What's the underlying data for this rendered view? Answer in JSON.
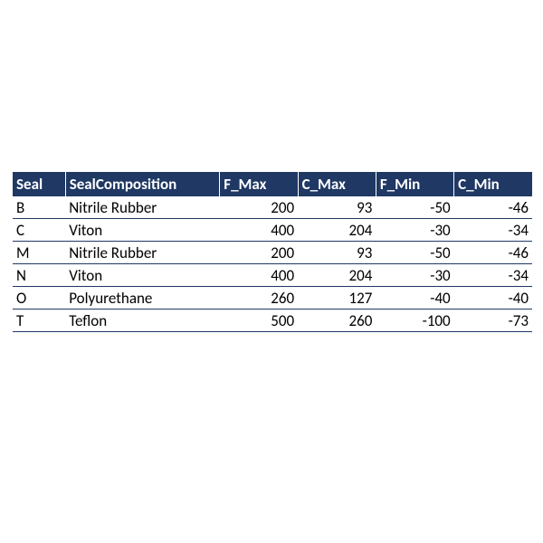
{
  "table": {
    "type": "table",
    "header_bg": "#1f3864",
    "header_fg": "#ffffff",
    "row_border_color": "#203864",
    "text_color": "#000000",
    "font_family": "Calibri",
    "header_fontsize": 17,
    "cell_fontsize": 17,
    "columns": [
      {
        "label": "Seal",
        "align": "left",
        "width": 58
      },
      {
        "label": "SealComposition",
        "align": "left",
        "width": 170
      },
      {
        "label": "F_Max",
        "align": "right",
        "width": 86
      },
      {
        "label": "C_Max",
        "align": "right",
        "width": 86
      },
      {
        "label": "F_Min",
        "align": "right",
        "width": 86
      },
      {
        "label": "C_Min",
        "align": "right",
        "width": 86
      }
    ],
    "rows": [
      {
        "seal": "B",
        "comp": "Nitrile Rubber",
        "fmax": "200",
        "cmax": "93",
        "fmin": "-50",
        "cmin": "-46"
      },
      {
        "seal": "C",
        "comp": "Viton",
        "fmax": "400",
        "cmax": "204",
        "fmin": "-30",
        "cmin": "-34"
      },
      {
        "seal": "M",
        "comp": "Nitrile Rubber",
        "fmax": "200",
        "cmax": "93",
        "fmin": "-50",
        "cmin": "-46"
      },
      {
        "seal": "N",
        "comp": "Viton",
        "fmax": "400",
        "cmax": "204",
        "fmin": "-30",
        "cmin": "-34"
      },
      {
        "seal": "O",
        "comp": "Polyurethane",
        "fmax": "260",
        "cmax": "127",
        "fmin": "-40",
        "cmin": "-40"
      },
      {
        "seal": "T",
        "comp": "Teflon",
        "fmax": "500",
        "cmax": "260",
        "fmin": "-100",
        "cmin": "-73"
      }
    ]
  }
}
